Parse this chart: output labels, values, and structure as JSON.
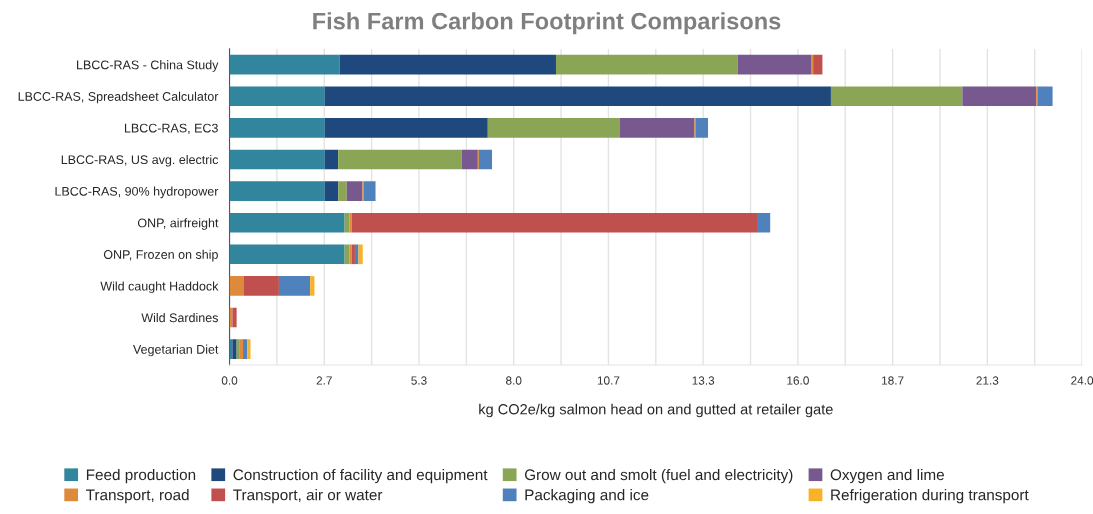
{
  "chart_data": {
    "type": "bar",
    "orientation": "horizontal",
    "stacked": true,
    "title": "Fish Farm Carbon Footprint Comparisons",
    "xlabel": "kg CO2e/kg salmon head on and gutted at retailer gate",
    "categories": [
      "LBCC-RAS - China Study",
      "LBCC-RAS, Spreadsheet Calculator",
      "LBCC-RAS, EC3",
      "LBCC-RAS, US avg. electric",
      "LBCC-RAS, 90% hydropower",
      "ONP, airfreight",
      "ONP, Frozen on ship",
      "Wild caught Haddock",
      "Wild Sardines",
      "Vegetarian Diet"
    ],
    "series": [
      {
        "name": "Feed production",
        "color": "#31859c",
        "values": [
          3.1,
          2.68,
          2.68,
          2.68,
          2.68,
          3.24,
          3.24,
          null,
          null,
          0.08
        ]
      },
      {
        "name": "Construction of facility and equipment",
        "color": "#1f497d",
        "values": [
          6.09,
          14.25,
          4.59,
          0.38,
          0.38,
          null,
          null,
          null,
          null,
          0.12
        ]
      },
      {
        "name": "Grow out and smolt (fuel and electricity)",
        "color": "#8ba557",
        "values": [
          5.12,
          3.7,
          3.72,
          3.48,
          0.24,
          0.14,
          0.14,
          null,
          null,
          0.09
        ]
      },
      {
        "name": "Oxygen and lime",
        "color": "#77598f",
        "values": [
          2.06,
          2.08,
          2.1,
          0.45,
          0.44,
          null,
          null,
          null,
          null,
          null
        ]
      },
      {
        "name": "Transport, road",
        "color": "#dd8a3c",
        "values": [
          0.06,
          0.03,
          0.04,
          0.03,
          0.03,
          0.06,
          0.06,
          0.39,
          0.08,
          0.09
        ]
      },
      {
        "name": "Transport, air or water",
        "color": "#c0504d",
        "values": [
          0.26,
          null,
          null,
          null,
          null,
          11.41,
          0.09,
          1.0,
          0.12,
          null
        ]
      },
      {
        "name": "Packaging and ice",
        "color": "#4f81bd",
        "values": [
          null,
          0.43,
          0.34,
          0.37,
          0.34,
          0.37,
          0.1,
          0.88,
          null,
          0.12
        ]
      },
      {
        "name": "Refrigeration during transport",
        "color": "#f9b128",
        "values": [
          null,
          null,
          null,
          null,
          null,
          null,
          0.12,
          0.12,
          null,
          0.09
        ]
      }
    ],
    "xlim": [
      0,
      24
    ],
    "xticks": [
      {
        "value": 0,
        "label": "0.0"
      },
      {
        "value": 1.3333,
        "label": null
      },
      {
        "value": 2.6667,
        "label": "2.7"
      },
      {
        "value": 4,
        "label": null
      },
      {
        "value": 5.3333,
        "label": "5.3"
      },
      {
        "value": 6.6667,
        "label": null
      },
      {
        "value": 8,
        "label": "8.0"
      },
      {
        "value": 9.3333,
        "label": null
      },
      {
        "value": 10.6667,
        "label": "10.7"
      },
      {
        "value": 12,
        "label": null
      },
      {
        "value": 13.3333,
        "label": "13.3"
      },
      {
        "value": 14.6667,
        "label": null
      },
      {
        "value": 16,
        "label": "16.0"
      },
      {
        "value": 17.3333,
        "label": null
      },
      {
        "value": 18.6667,
        "label": "18.7"
      },
      {
        "value": 20,
        "label": null
      },
      {
        "value": 21.3333,
        "label": "21.3"
      },
      {
        "value": 22.6667,
        "label": null
      },
      {
        "value": 24,
        "label": "24.0"
      }
    ],
    "grid": "x",
    "legend": "bottom"
  }
}
